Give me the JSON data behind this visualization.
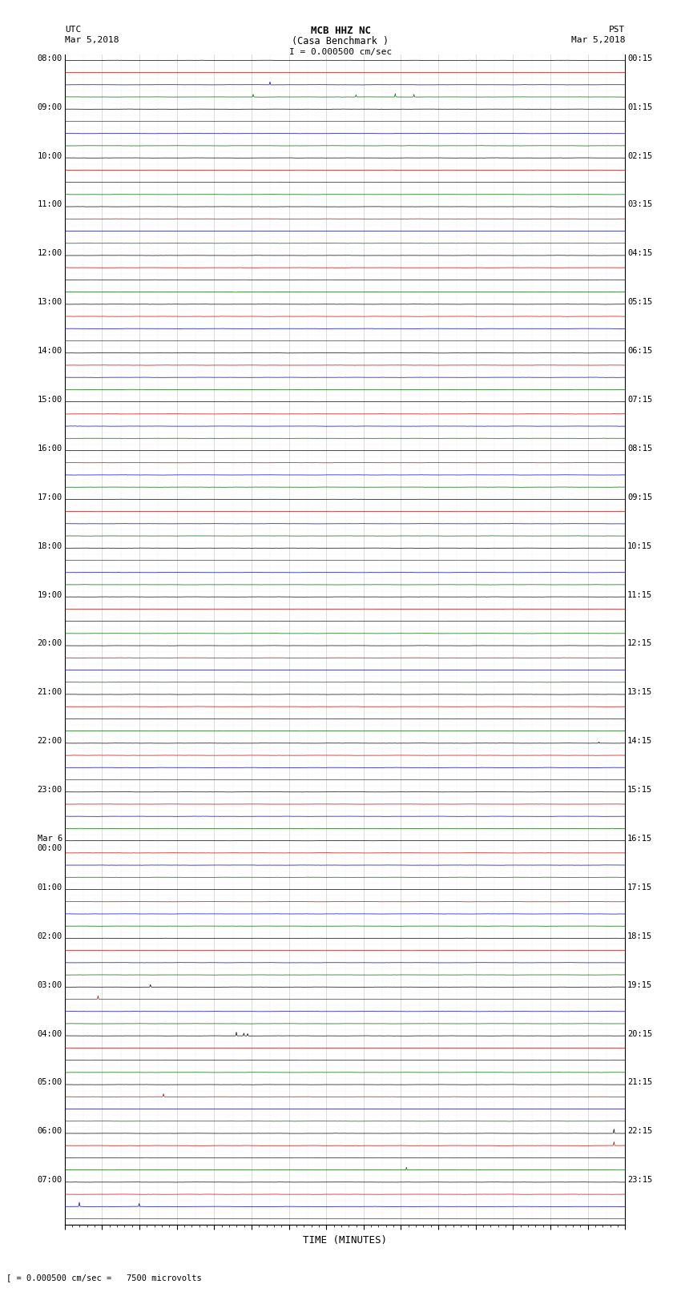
{
  "title_line1": "MCB HHZ NC",
  "title_line2": "(Casa Benchmark )",
  "scale_label": "I = 0.000500 cm/sec",
  "xlabel": "TIME (MINUTES)",
  "footer_label": "[ = 0.000500 cm/sec =   7500 microvolts",
  "utc_times_labeled": [
    "08:00",
    "09:00",
    "10:00",
    "11:00",
    "12:00",
    "13:00",
    "14:00",
    "15:00",
    "16:00",
    "17:00",
    "18:00",
    "19:00",
    "20:00",
    "21:00",
    "22:00",
    "23:00",
    "Mar 6\n00:00",
    "01:00",
    "02:00",
    "03:00",
    "04:00",
    "05:00",
    "06:00",
    "07:00"
  ],
  "pst_times_labeled": [
    "00:15",
    "01:15",
    "02:15",
    "03:15",
    "04:15",
    "05:15",
    "06:15",
    "07:15",
    "08:15",
    "09:15",
    "10:15",
    "11:15",
    "12:15",
    "13:15",
    "14:15",
    "15:15",
    "16:15",
    "17:15",
    "18:15",
    "19:15",
    "20:15",
    "21:15",
    "22:15",
    "23:15"
  ],
  "num_hours": 24,
  "traces_per_hour": 4,
  "minutes": 15,
  "noise_amp": 0.012,
  "bg_color": "#ffffff",
  "trace_colors": [
    "#000000",
    "#cc0000",
    "#0000cc",
    "#006600"
  ],
  "grid_minor_color": "#888888",
  "grid_major_color": "#444444",
  "spikes": [
    {
      "row": 2,
      "t": 5.5,
      "amp": 0.25,
      "color": "#006600"
    },
    {
      "row": 3,
      "t": 5.05,
      "amp": 0.22,
      "color": "#006600"
    },
    {
      "row": 3,
      "t": 7.8,
      "amp": 0.18,
      "color": "#006600"
    },
    {
      "row": 3,
      "t": 8.85,
      "amp": 0.28,
      "color": "#006600"
    },
    {
      "row": 3,
      "t": 9.35,
      "amp": 0.22,
      "color": "#006600"
    },
    {
      "row": 56,
      "t": 14.3,
      "amp": 0.1,
      "color": "#000000"
    },
    {
      "row": 76,
      "t": 2.3,
      "amp": 0.2,
      "color": "#006600"
    },
    {
      "row": 77,
      "t": 0.9,
      "amp": 0.28,
      "color": "#006600"
    },
    {
      "row": 80,
      "t": 4.6,
      "amp": 0.3,
      "color": "#006600"
    },
    {
      "row": 80,
      "t": 4.8,
      "amp": 0.22,
      "color": "#006600"
    },
    {
      "row": 80,
      "t": 4.9,
      "amp": 0.18,
      "color": "#000000"
    },
    {
      "row": 85,
      "t": 2.65,
      "amp": 0.25,
      "color": "#0000cc"
    },
    {
      "row": 88,
      "t": 14.7,
      "amp": 0.35,
      "color": "#0000cc"
    },
    {
      "row": 89,
      "t": 14.7,
      "amp": 0.3,
      "color": "#0000cc"
    },
    {
      "row": 91,
      "t": 9.15,
      "amp": 0.22,
      "color": "#0000cc"
    },
    {
      "row": 94,
      "t": 0.4,
      "amp": 0.35,
      "color": "#006600"
    },
    {
      "row": 94,
      "t": 2.0,
      "amp": 0.25,
      "color": "#006600"
    }
  ]
}
